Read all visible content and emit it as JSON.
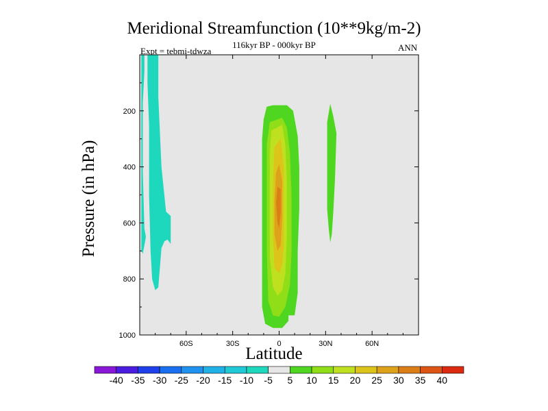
{
  "chart_data": {
    "type": "contour",
    "title": "Meridional Streamfunction (10**9kg/m-2)",
    "subtitle": "116kyr BP - 000kyr BP",
    "left_label": "Expt = tebmi-tdwza",
    "right_label": "ANN",
    "xlabel": "Latitude",
    "ylabel": "Pressure (in hPa)",
    "xlim": [
      -90,
      90
    ],
    "ylim": [
      0,
      1000
    ],
    "y_inverted": true,
    "x_ticks": [
      {
        "value": -60,
        "label": "60S"
      },
      {
        "value": -30,
        "label": "30S"
      },
      {
        "value": 0,
        "label": "0"
      },
      {
        "value": 30,
        "label": "30N"
      },
      {
        "value": 60,
        "label": "60N"
      }
    ],
    "y_ticks": [
      {
        "value": 200,
        "label": "200"
      },
      {
        "value": 400,
        "label": "400"
      },
      {
        "value": 600,
        "label": "600"
      },
      {
        "value": 800,
        "label": "800"
      },
      {
        "value": 1000,
        "label": "1000"
      }
    ],
    "background_color": "#e6e6e6",
    "contour_levels": [
      -40,
      -35,
      -30,
      -25,
      -20,
      -15,
      -10,
      -5,
      5,
      10,
      15,
      20,
      25,
      30,
      35,
      40
    ],
    "colorbar_colors": [
      "#8a17d8",
      "#4a1cdf",
      "#1e40ea",
      "#1a6ef0",
      "#1e92ee",
      "#20b2e6",
      "#20c9d6",
      "#1ed8be",
      "#e6e6e6",
      "#4ed620",
      "#90de18",
      "#bfe01e",
      "#ddc41a",
      "#dea21a",
      "#dc7e16",
      "#dc5514",
      "#dc2a10"
    ],
    "regions": [
      {
        "value": -7,
        "color": "#1ed8be",
        "points": [
          [
            -89,
            0
          ],
          [
            -87,
            0
          ],
          [
            -87,
            60
          ],
          [
            -88,
            170
          ],
          [
            -88,
            420
          ],
          [
            -87,
            620
          ],
          [
            -86,
            650
          ],
          [
            -88,
            710
          ],
          [
            -89,
            700
          ]
        ]
      },
      {
        "value": -7,
        "color": "#1ed8be",
        "points": [
          [
            -85,
            0
          ],
          [
            -78,
            0
          ],
          [
            -78,
            150
          ],
          [
            -76,
            400
          ],
          [
            -73,
            560
          ],
          [
            -70,
            575
          ],
          [
            -70,
            675
          ],
          [
            -72,
            660
          ],
          [
            -74,
            665
          ],
          [
            -76,
            690
          ],
          [
            -77,
            760
          ],
          [
            -78,
            830
          ],
          [
            -80,
            840
          ],
          [
            -82,
            800
          ],
          [
            -83,
            700
          ],
          [
            -84,
            500
          ],
          [
            -84,
            250
          ],
          [
            -85,
            100
          ]
        ]
      },
      {
        "value": 7,
        "color": "#4ed620",
        "points": [
          [
            -8,
            185
          ],
          [
            -4,
            180
          ],
          [
            5,
            180
          ],
          [
            9,
            200
          ],
          [
            12,
            290
          ],
          [
            13,
            400
          ],
          [
            13,
            550
          ],
          [
            12,
            700
          ],
          [
            12,
            850
          ],
          [
            10,
            930
          ],
          [
            6,
            930
          ],
          [
            6,
            950
          ],
          [
            2,
            975
          ],
          [
            -4,
            975
          ],
          [
            -9,
            960
          ],
          [
            -11,
            900
          ],
          [
            -11,
            700
          ],
          [
            -11,
            500
          ],
          [
            -11,
            300
          ],
          [
            -10,
            230
          ]
        ]
      },
      {
        "value": 7,
        "color": "#4ed620",
        "points": [
          [
            31,
            240
          ],
          [
            33,
            175
          ],
          [
            35,
            220
          ],
          [
            37,
            280
          ],
          [
            36,
            450
          ],
          [
            35,
            560
          ],
          [
            34,
            640
          ],
          [
            33,
            670
          ],
          [
            32,
            620
          ],
          [
            31,
            550
          ],
          [
            31,
            400
          ]
        ]
      },
      {
        "value": 12,
        "color": "#90de18",
        "points": [
          [
            -6,
            240
          ],
          [
            2,
            225
          ],
          [
            5,
            260
          ],
          [
            7,
            350
          ],
          [
            8,
            500
          ],
          [
            8,
            700
          ],
          [
            7,
            820
          ],
          [
            4,
            900
          ],
          [
            0,
            935
          ],
          [
            -4,
            930
          ],
          [
            -7,
            880
          ],
          [
            -8,
            700
          ],
          [
            -8,
            450
          ],
          [
            -8,
            320
          ]
        ]
      },
      {
        "value": 17,
        "color": "#bfe01e",
        "points": [
          [
            -5,
            270
          ],
          [
            2,
            250
          ],
          [
            4,
            320
          ],
          [
            5,
            450
          ],
          [
            5,
            650
          ],
          [
            4,
            780
          ],
          [
            2,
            840
          ],
          [
            -1,
            860
          ],
          [
            -4,
            830
          ],
          [
            -6,
            720
          ],
          [
            -6,
            500
          ],
          [
            -6,
            350
          ]
        ]
      },
      {
        "value": 22,
        "color": "#ddc41a",
        "points": [
          [
            -3,
            330
          ],
          [
            1,
            300
          ],
          [
            3,
            400
          ],
          [
            3,
            560
          ],
          [
            3,
            680
          ],
          [
            2,
            750
          ],
          [
            0,
            780
          ],
          [
            -3,
            760
          ],
          [
            -4,
            650
          ],
          [
            -4,
            450
          ]
        ]
      },
      {
        "value": 27,
        "color": "#dea21a",
        "points": [
          [
            -2,
            420
          ],
          [
            0,
            390
          ],
          [
            2,
            450
          ],
          [
            2,
            580
          ],
          [
            1,
            680
          ],
          [
            -1,
            700
          ],
          [
            -3,
            640
          ],
          [
            -3,
            520
          ]
        ]
      },
      {
        "value": 32,
        "color": "#dc7e16",
        "points": [
          [
            -1,
            470
          ],
          [
            1,
            480
          ],
          [
            1,
            560
          ],
          [
            0,
            620
          ],
          [
            -1,
            600
          ],
          [
            -2,
            530
          ]
        ]
      }
    ]
  }
}
